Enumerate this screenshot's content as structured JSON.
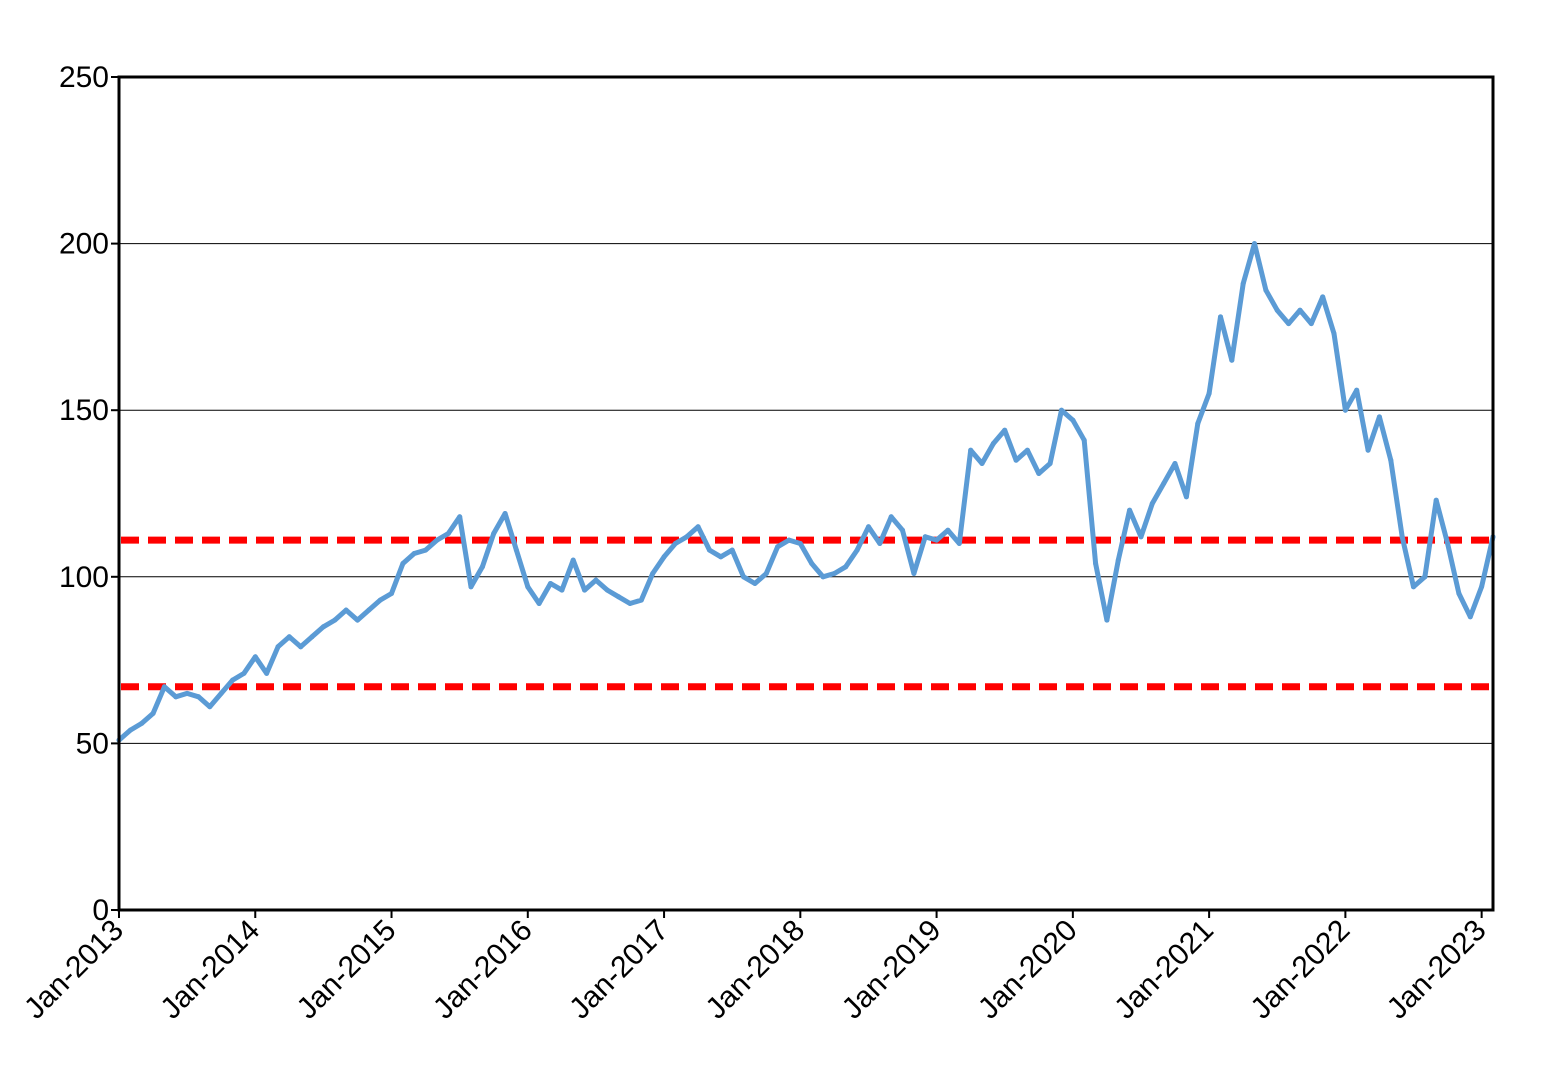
{
  "chart_data": {
    "type": "line",
    "title": "",
    "xlabel": "",
    "ylabel": "",
    "ylim": [
      0,
      250
    ],
    "xlim": [
      "2013-01",
      "2023-02"
    ],
    "grid": "horizontal",
    "legend": "none",
    "y_ticks": [
      "0",
      "50",
      "100",
      "150",
      "200",
      "250"
    ],
    "x_ticks": [
      {
        "date": "2013-01",
        "label": "Jan-2013"
      },
      {
        "date": "2014-01",
        "label": "Jan-2014"
      },
      {
        "date": "2015-01",
        "label": "Jan-2015"
      },
      {
        "date": "2016-01",
        "label": "Jan-2016"
      },
      {
        "date": "2017-01",
        "label": "Jan-2017"
      },
      {
        "date": "2018-01",
        "label": "Jan-2018"
      },
      {
        "date": "2019-01",
        "label": "Jan-2019"
      },
      {
        "date": "2020-01",
        "label": "Jan-2020"
      },
      {
        "date": "2021-01",
        "label": "Jan-2021"
      },
      {
        "date": "2022-01",
        "label": "Jan-2022"
      },
      {
        "date": "2023-01",
        "label": "Jan-2023"
      }
    ],
    "series": [
      {
        "color": "#5b9bd5",
        "points": [
          [
            "2013-01-01",
            51
          ],
          [
            "2013-02-01",
            54
          ],
          [
            "2013-03-01",
            56
          ],
          [
            "2013-04-01",
            59
          ],
          [
            "2013-05-01",
            67
          ],
          [
            "2013-06-01",
            64
          ],
          [
            "2013-07-01",
            65
          ],
          [
            "2013-08-01",
            64
          ],
          [
            "2013-09-01",
            61
          ],
          [
            "2013-10-01",
            65
          ],
          [
            "2013-11-01",
            69
          ],
          [
            "2013-12-01",
            71
          ],
          [
            "2014-01-01",
            76
          ],
          [
            "2014-02-01",
            71
          ],
          [
            "2014-03-01",
            79
          ],
          [
            "2014-04-01",
            82
          ],
          [
            "2014-05-01",
            79
          ],
          [
            "2014-06-01",
            82
          ],
          [
            "2014-07-01",
            85
          ],
          [
            "2014-08-01",
            87
          ],
          [
            "2014-09-01",
            90
          ],
          [
            "2014-10-01",
            87
          ],
          [
            "2014-11-01",
            90
          ],
          [
            "2014-12-01",
            93
          ],
          [
            "2015-01-01",
            95
          ],
          [
            "2015-02-01",
            104
          ],
          [
            "2015-03-01",
            107
          ],
          [
            "2015-04-01",
            108
          ],
          [
            "2015-05-01",
            111
          ],
          [
            "2015-06-01",
            113
          ],
          [
            "2015-07-01",
            118
          ],
          [
            "2015-08-01",
            97
          ],
          [
            "2015-09-01",
            103
          ],
          [
            "2015-10-01",
            113
          ],
          [
            "2015-11-01",
            119
          ],
          [
            "2015-12-01",
            108
          ],
          [
            "2016-01-01",
            97
          ],
          [
            "2016-02-01",
            92
          ],
          [
            "2016-03-01",
            98
          ],
          [
            "2016-04-01",
            96
          ],
          [
            "2016-05-01",
            105
          ],
          [
            "2016-06-01",
            96
          ],
          [
            "2016-07-01",
            99
          ],
          [
            "2016-08-01",
            96
          ],
          [
            "2016-09-01",
            94
          ],
          [
            "2016-10-01",
            92
          ],
          [
            "2016-11-01",
            93
          ],
          [
            "2016-12-01",
            101
          ],
          [
            "2017-01-01",
            106
          ],
          [
            "2017-02-01",
            110
          ],
          [
            "2017-03-01",
            112
          ],
          [
            "2017-04-01",
            115
          ],
          [
            "2017-05-01",
            108
          ],
          [
            "2017-06-01",
            106
          ],
          [
            "2017-07-01",
            108
          ],
          [
            "2017-08-01",
            100
          ],
          [
            "2017-09-01",
            98
          ],
          [
            "2017-10-01",
            101
          ],
          [
            "2017-11-01",
            109
          ],
          [
            "2017-12-01",
            111
          ],
          [
            "2018-01-01",
            110
          ],
          [
            "2018-02-01",
            104
          ],
          [
            "2018-03-01",
            100
          ],
          [
            "2018-04-01",
            101
          ],
          [
            "2018-05-01",
            103
          ],
          [
            "2018-06-01",
            108
          ],
          [
            "2018-07-01",
            115
          ],
          [
            "2018-08-01",
            110
          ],
          [
            "2018-09-01",
            118
          ],
          [
            "2018-10-01",
            114
          ],
          [
            "2018-11-01",
            101
          ],
          [
            "2018-12-01",
            112
          ],
          [
            "2019-01-01",
            111
          ],
          [
            "2019-02-01",
            114
          ],
          [
            "2019-03-01",
            110
          ],
          [
            "2019-04-01",
            138
          ],
          [
            "2019-05-01",
            134
          ],
          [
            "2019-06-01",
            140
          ],
          [
            "2019-07-01",
            144
          ],
          [
            "2019-08-01",
            135
          ],
          [
            "2019-09-01",
            138
          ],
          [
            "2019-10-01",
            131
          ],
          [
            "2019-11-01",
            134
          ],
          [
            "2019-12-01",
            150
          ],
          [
            "2020-01-01",
            147
          ],
          [
            "2020-02-01",
            141
          ],
          [
            "2020-03-01",
            104
          ],
          [
            "2020-04-01",
            87
          ],
          [
            "2020-05-01",
            105
          ],
          [
            "2020-06-01",
            120
          ],
          [
            "2020-07-01",
            112
          ],
          [
            "2020-08-01",
            122
          ],
          [
            "2020-09-01",
            128
          ],
          [
            "2020-10-01",
            134
          ],
          [
            "2020-11-01",
            124
          ],
          [
            "2020-12-01",
            146
          ],
          [
            "2021-01-01",
            155
          ],
          [
            "2021-02-01",
            178
          ],
          [
            "2021-03-01",
            165
          ],
          [
            "2021-04-01",
            188
          ],
          [
            "2021-05-01",
            200
          ],
          [
            "2021-06-01",
            186
          ],
          [
            "2021-07-01",
            180
          ],
          [
            "2021-08-01",
            176
          ],
          [
            "2021-09-01",
            180
          ],
          [
            "2021-10-01",
            176
          ],
          [
            "2021-11-01",
            184
          ],
          [
            "2021-12-01",
            173
          ],
          [
            "2022-01-01",
            150
          ],
          [
            "2022-02-01",
            156
          ],
          [
            "2022-03-01",
            138
          ],
          [
            "2022-04-01",
            148
          ],
          [
            "2022-05-01",
            135
          ],
          [
            "2022-06-01",
            112
          ],
          [
            "2022-07-01",
            97
          ],
          [
            "2022-08-01",
            100
          ],
          [
            "2022-09-01",
            123
          ],
          [
            "2022-10-01",
            110
          ],
          [
            "2022-11-01",
            95
          ],
          [
            "2022-12-01",
            88
          ],
          [
            "2023-01-01",
            97
          ],
          [
            "2023-02-01",
            112
          ]
        ]
      }
    ],
    "reference_lines": [
      {
        "y": 111,
        "color": "#ff0000",
        "style": "dashed"
      },
      {
        "y": 67,
        "color": "#ff0000",
        "style": "dashed"
      }
    ]
  }
}
